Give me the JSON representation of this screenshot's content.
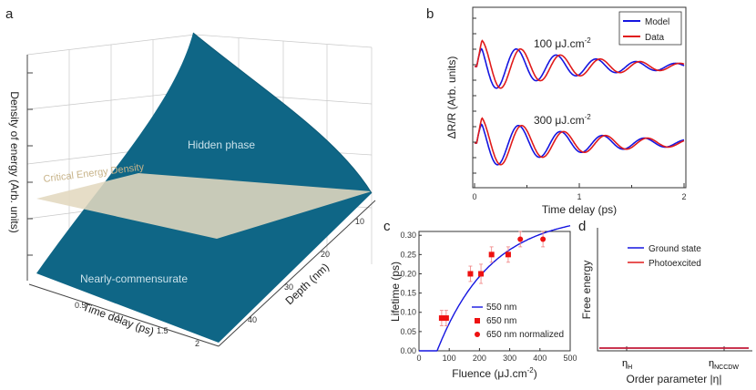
{
  "colors": {
    "surface": "#0f6686",
    "plane": "#e3d8bf",
    "model_blue": "#1515e0",
    "data_red": "#e01b1b",
    "marker_red": "#ee1111",
    "errbar": "#f08080",
    "surface_label": "#c9e1ea",
    "plane_label": "#c8b48a"
  },
  "chart_data": [
    {
      "panel": "a",
      "type": "surface3d",
      "zlabel": "Density of energy (Arb. units)",
      "xlabel": "Time delay (ps)",
      "ylabel": "Depth (nm)",
      "x_ticks": [
        "0.5",
        "1",
        "1.5",
        "2"
      ],
      "y_ticks": [
        "10",
        "20",
        "30",
        "40"
      ],
      "plane_label": "Critical Energy Density",
      "upper_region_label": "Hidden phase",
      "lower_region_label": "Nearly-commensurate"
    },
    {
      "panel": "b",
      "type": "line",
      "xlabel": "Time delay (ps)",
      "ylabel": "ΔR/R (Arb. units)",
      "xlim": [
        0,
        2
      ],
      "x_ticks": [
        "0",
        "1",
        "2"
      ],
      "legend": [
        "Model",
        "Data"
      ],
      "annotations": [
        {
          "value": "100",
          "unit": "μJ.cm",
          "exp": "-2"
        },
        {
          "value": "300",
          "unit": "μJ.cm",
          "exp": "-2"
        }
      ],
      "series_params": {
        "model_100": {
          "amp": 1.0,
          "period": 0.38,
          "tau": 0.9,
          "phase": 0.0
        },
        "data_100": {
          "amp": 1.0,
          "period": 0.38,
          "tau": 0.9,
          "phase": 0.04
        },
        "model_300": {
          "amp": 1.0,
          "period": 0.4,
          "tau": 0.95,
          "phase": 0.0
        },
        "data_300": {
          "amp": 1.0,
          "period": 0.4,
          "tau": 0.95,
          "phase": 0.03
        }
      }
    },
    {
      "panel": "c",
      "type": "scatter",
      "xlabel": "Fluence (μJ.cm",
      "xlabel_exp": "-2",
      "xlabel_close": ")",
      "ylabel": "Lifetime (ps)",
      "xlim": [
        0,
        500
      ],
      "ylim": [
        0,
        0.31
      ],
      "x_ticks": [
        "0",
        "100",
        "200",
        "300",
        "400",
        "500"
      ],
      "y_ticks": [
        "0.00",
        "0.05",
        "0.10",
        "0.15",
        "0.20",
        "0.25",
        "0.30"
      ],
      "legend": [
        "550 nm",
        "650 nm",
        "650 nm normalized"
      ],
      "fit_curve": {
        "x0": 60,
        "A": 0.355,
        "k": 0.0056
      },
      "points_650nm": [
        {
          "x": 75,
          "y": 0.085,
          "err": 0.02
        },
        {
          "x": 90,
          "y": 0.085,
          "err": 0.02
        },
        {
          "x": 170,
          "y": 0.2,
          "err": 0.02
        },
        {
          "x": 205,
          "y": 0.2,
          "err": 0.025
        },
        {
          "x": 240,
          "y": 0.25,
          "err": 0.02
        },
        {
          "x": 295,
          "y": 0.25,
          "err": 0.02
        }
      ],
      "points_650nm_normalized": [
        {
          "x": 335,
          "y": 0.29,
          "err": 0.02
        },
        {
          "x": 410,
          "y": 0.29,
          "err": 0.02
        }
      ]
    },
    {
      "panel": "d",
      "type": "line",
      "xlabel": "Order parameter |η|",
      "ylabel": "Free energy",
      "x_ticks": [
        {
          "main": "η",
          "sub": "H"
        },
        {
          "main": "η",
          "sub": "NCCDW"
        }
      ],
      "legend": [
        "Ground state",
        "Photoexcited"
      ]
    }
  ],
  "panel_labels": {
    "a": "a",
    "b": "b",
    "c": "c",
    "d": "d"
  }
}
